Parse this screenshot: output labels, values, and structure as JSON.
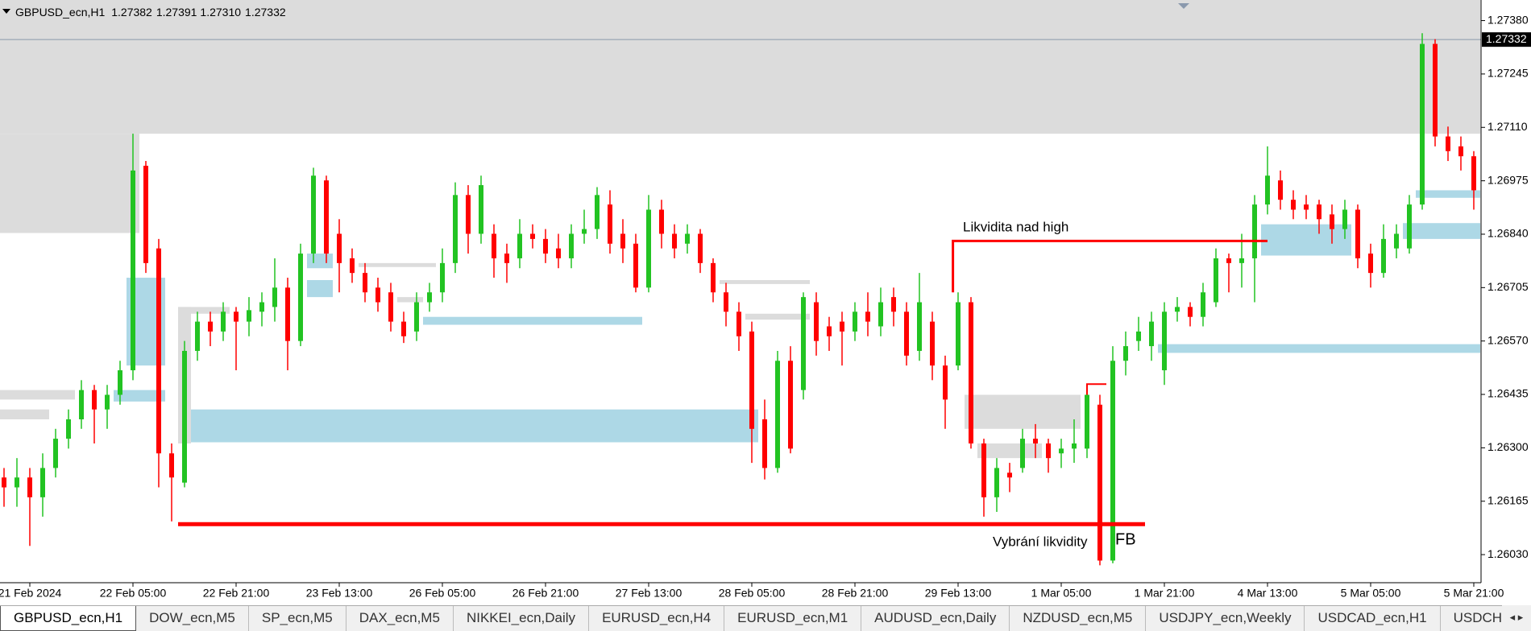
{
  "chart_data": {
    "type": "candlestick",
    "symbol": "GBPUSD_ecn,H1",
    "quote": [
      "1.27382",
      "1.27391",
      "1.27310",
      "1.27332"
    ],
    "up_color": "#22c322",
    "down_color": "#ff0000",
    "ylim": [
      1.25959,
      1.27432
    ],
    "yticks": [
      {
        "value": 1.2738,
        "label": "1.27380"
      },
      1.27245,
      {
        "value": 1.2711,
        "label": "1.27110"
      },
      1.26975,
      {
        "value": 1.2684,
        "label": "1.26840"
      },
      1.26705,
      {
        "value": 1.2657,
        "label": "1.26570"
      },
      1.26435,
      {
        "value": 1.263,
        "label": "1.26300"
      },
      1.26165,
      {
        "value": 1.2603,
        "label": "1.26030"
      }
    ],
    "last_price": 1.27332,
    "categories": [
      null,
      null,
      "21 Feb 2024",
      null,
      null,
      null,
      null,
      null,
      null,
      null,
      "22 Feb 05:00",
      null,
      null,
      null,
      null,
      null,
      null,
      null,
      "22 Feb 21:00",
      null,
      null,
      null,
      null,
      null,
      null,
      null,
      "23 Feb 13:00",
      null,
      null,
      null,
      null,
      null,
      null,
      null,
      "26 Feb 05:00",
      null,
      null,
      null,
      null,
      null,
      null,
      null,
      "26 Feb 21:00",
      null,
      null,
      null,
      null,
      null,
      null,
      null,
      "27 Feb 13:00",
      null,
      null,
      null,
      null,
      null,
      null,
      null,
      "28 Feb 05:00",
      null,
      null,
      null,
      null,
      null,
      null,
      null,
      "28 Feb 21:00",
      null,
      null,
      null,
      null,
      null,
      null,
      null,
      "29 Feb 13:00",
      null,
      null,
      null,
      null,
      null,
      null,
      null,
      "1 Mar 05:00",
      null,
      null,
      null,
      null,
      null,
      null,
      null,
      "1 Mar 21:00",
      null,
      null,
      null,
      null,
      null,
      null,
      null,
      "4 Mar 13:00",
      null,
      null,
      null,
      null,
      null,
      null,
      null,
      "5 Mar 05:00",
      null,
      null,
      null,
      null,
      null,
      null,
      null,
      "5 Mar 21:00"
    ],
    "values": [
      [
        1.26225,
        1.26249,
        1.26151,
        1.262
      ],
      [
        1.262,
        1.26274,
        1.26151,
        1.26225
      ],
      [
        1.26225,
        1.26249,
        1.26052,
        1.26175
      ],
      [
        1.26175,
        1.26286,
        1.26126,
        1.26249
      ],
      [
        1.26249,
        1.26348,
        1.26225,
        1.26323
      ],
      [
        1.26323,
        1.26397,
        1.26298,
        1.26372
      ],
      [
        1.26372,
        1.26471,
        1.26348,
        1.26446
      ],
      [
        1.26446,
        1.26459,
        1.26311,
        1.26397
      ],
      [
        1.26397,
        1.26459,
        1.26348,
        1.26434
      ],
      [
        1.26434,
        1.2652,
        1.26409,
        1.26496
      ],
      [
        1.26496,
        1.27094,
        1.26471,
        1.27001
      ],
      [
        1.27013,
        1.27025,
        1.26742,
        1.26767
      ],
      [
        1.26804,
        1.26828,
        1.262,
        1.26286
      ],
      [
        1.26286,
        1.26311,
        1.26114,
        1.26225
      ],
      [
        1.26212,
        1.2657,
        1.262,
        1.26545
      ],
      [
        1.26545,
        1.26644,
        1.2652,
        1.26619
      ],
      [
        1.26619,
        1.26644,
        1.26557,
        1.26594
      ],
      [
        1.26594,
        1.26668,
        1.2657,
        1.26644
      ],
      [
        1.26644,
        1.26656,
        1.26496,
        1.26619
      ],
      [
        1.26619,
        1.26681,
        1.26582,
        1.26648
      ],
      [
        1.26644,
        1.26693,
        1.26607,
        1.26668
      ],
      [
        1.26656,
        1.26779,
        1.26619,
        1.26705
      ],
      [
        1.26705,
        1.2673,
        1.26496,
        1.2657
      ],
      [
        1.2657,
        1.26816,
        1.26557,
        1.26791
      ],
      [
        1.26791,
        1.27008,
        1.26767,
        1.26988
      ],
      [
        1.26976,
        1.26988,
        1.26767,
        1.26791
      ],
      [
        1.26841,
        1.26878,
        1.26693,
        1.26767
      ],
      [
        1.26779,
        1.26804,
        1.26717,
        1.26742
      ],
      [
        1.26742,
        1.26767,
        1.26668,
        1.26693
      ],
      [
        1.26705,
        1.2673,
        1.26644,
        1.26668
      ],
      [
        1.26693,
        1.26717,
        1.26594,
        1.26619
      ],
      [
        1.26619,
        1.26644,
        1.26565,
        1.26582
      ],
      [
        1.26594,
        1.26693,
        1.2657,
        1.26668
      ],
      [
        1.26668,
        1.26717,
        1.26644,
        1.26693
      ],
      [
        1.26693,
        1.26804,
        1.26668,
        1.26767
      ],
      [
        1.26767,
        1.26971,
        1.26742,
        1.26939
      ],
      [
        1.26939,
        1.26964,
        1.26791,
        1.26841
      ],
      [
        1.26841,
        1.26988,
        1.26816,
        1.26964
      ],
      [
        1.26841,
        1.26865,
        1.2673,
        1.26779
      ],
      [
        1.26791,
        1.26816,
        1.26717,
        1.26767
      ],
      [
        1.26779,
        1.26878,
        1.26754,
        1.26841
      ],
      [
        1.26841,
        1.26865,
        1.26804,
        1.26828
      ],
      [
        1.26828,
        1.26853,
        1.26767,
        1.26791
      ],
      [
        1.26804,
        1.26841,
        1.26754,
        1.26779
      ],
      [
        1.26779,
        1.26865,
        1.26754,
        1.26841
      ],
      [
        1.26841,
        1.26902,
        1.26816,
        1.26853
      ],
      [
        1.26853,
        1.26959,
        1.26828,
        1.26939
      ],
      [
        1.26915,
        1.26951,
        1.26791,
        1.26816
      ],
      [
        1.26841,
        1.26878,
        1.26767,
        1.26804
      ],
      [
        1.26816,
        1.26841,
        1.26693,
        1.26705
      ],
      [
        1.26705,
        1.26939,
        1.26693,
        1.26902
      ],
      [
        1.26902,
        1.26927,
        1.26804,
        1.26841
      ],
      [
        1.26841,
        1.26865,
        1.26779,
        1.26804
      ],
      [
        1.26816,
        1.26865,
        1.26791,
        1.26841
      ],
      [
        1.26841,
        1.26853,
        1.26742,
        1.26767
      ],
      [
        1.26767,
        1.26779,
        1.26668,
        1.26693
      ],
      [
        1.26693,
        1.26717,
        1.26607,
        1.26644
      ],
      [
        1.26644,
        1.26668,
        1.26545,
        1.26582
      ],
      [
        1.26594,
        1.26619,
        1.26262,
        1.26348
      ],
      [
        1.26372,
        1.26422,
        1.2622,
        1.26249
      ],
      [
        1.26249,
        1.26545,
        1.26237,
        1.2652
      ],
      [
        1.2652,
        1.26557,
        1.26286,
        1.26298
      ],
      [
        1.26446,
        1.26693,
        1.26422,
        1.26681
      ],
      [
        1.26668,
        1.26693,
        1.26533,
        1.2657
      ],
      [
        1.26607,
        1.26631,
        1.26545,
        1.26582
      ],
      [
        1.26619,
        1.26644,
        1.26508,
        1.26594
      ],
      [
        1.26594,
        1.26668,
        1.2657,
        1.26644
      ],
      [
        1.26644,
        1.26693,
        1.26582,
        1.26619
      ],
      [
        1.26607,
        1.26705,
        1.26582,
        1.26668
      ],
      [
        1.26681,
        1.26705,
        1.26607,
        1.26644
      ],
      [
        1.26644,
        1.26668,
        1.26508,
        1.26533
      ],
      [
        1.26545,
        1.26742,
        1.2652,
        1.26668
      ],
      [
        1.26619,
        1.26644,
        1.26471,
        1.26508
      ],
      [
        1.26508,
        1.26533,
        1.26348,
        1.26422
      ],
      [
        1.26508,
        1.26693,
        1.26496,
        1.26668
      ],
      [
        1.26668,
        1.26681,
        1.26298,
        1.26311
      ],
      [
        1.26311,
        1.26323,
        1.26126,
        1.26175
      ],
      [
        1.26175,
        1.26274,
        1.26138,
        1.26249
      ],
      [
        1.26237,
        1.26262,
        1.26188,
        1.26225
      ],
      [
        1.26249,
        1.26348,
        1.26237,
        1.26323
      ],
      [
        1.26323,
        1.2636,
        1.26274,
        1.26311
      ],
      [
        1.26311,
        1.26323,
        1.26237,
        1.26274
      ],
      [
        1.26286,
        1.26323,
        1.26249,
        1.26298
      ],
      [
        1.26298,
        1.26372,
        1.26262,
        1.26311
      ],
      [
        1.26298,
        1.26459,
        1.26274,
        1.26434
      ],
      [
        1.26409,
        1.26434,
        1.26003,
        1.26015
      ],
      [
        1.26015,
        1.26557,
        1.26008,
        1.2652
      ],
      [
        1.2652,
        1.26594,
        1.26483,
        1.26557
      ],
      [
        1.2657,
        1.26631,
        1.26545,
        1.26594
      ],
      [
        1.26557,
        1.26644,
        1.2652,
        1.26619
      ],
      [
        1.26496,
        1.26668,
        1.26459,
        1.26644
      ],
      [
        1.26644,
        1.26681,
        1.26619,
        1.26656
      ],
      [
        1.26656,
        1.26668,
        1.26607,
        1.26631
      ],
      [
        1.26631,
        1.26717,
        1.26607,
        1.26693
      ],
      [
        1.26668,
        1.26804,
        1.26656,
        1.26779
      ],
      [
        1.26779,
        1.26791,
        1.26693,
        1.26767
      ],
      [
        1.26767,
        1.26841,
        1.26705,
        1.26779
      ],
      [
        1.26779,
        1.26939,
        1.26668,
        1.26915
      ],
      [
        1.26915,
        1.27062,
        1.2689,
        1.26988
      ],
      [
        1.26976,
        1.27001,
        1.26902,
        1.26927
      ],
      [
        1.26927,
        1.26951,
        1.26878,
        1.26902
      ],
      [
        1.26915,
        1.26939,
        1.26878,
        1.26902
      ],
      [
        1.26915,
        1.26927,
        1.26841,
        1.26878
      ],
      [
        1.2689,
        1.26915,
        1.26816,
        1.26853
      ],
      [
        1.26853,
        1.26927,
        1.26828,
        1.26902
      ],
      [
        1.26902,
        1.26915,
        1.26754,
        1.26779
      ],
      [
        1.26791,
        1.26816,
        1.26705,
        1.26742
      ],
      [
        1.26742,
        1.26865,
        1.2673,
        1.26828
      ],
      [
        1.26804,
        1.26865,
        1.26779,
        1.26841
      ],
      [
        1.26804,
        1.26939,
        1.26791,
        1.26915
      ],
      [
        1.26915,
        1.27348,
        1.26902,
        1.27321
      ],
      [
        1.27321,
        1.27333,
        1.27062,
        1.27087
      ],
      [
        1.27087,
        1.27112,
        1.27025,
        1.2705
      ],
      [
        1.27062,
        1.27087,
        1.27001,
        1.27037
      ],
      [
        1.27037,
        1.2705,
        1.26902,
        1.26951
      ]
    ],
    "zones": [
      {
        "from": 0,
        "to": 114,
        "top": 1.27432,
        "bottom": 1.27094,
        "color": "#dcdcdc"
      },
      {
        "from": 0,
        "to": 10,
        "top": 1.27094,
        "bottom": 1.26843,
        "color": "#dcdcdc"
      },
      {
        "from": 0,
        "to": 5,
        "top": 1.26446,
        "bottom": 1.26422,
        "color": "#dcdcdc"
      },
      {
        "from": 0,
        "to": 3,
        "top": 1.26397,
        "bottom": 1.26372,
        "color": "#dcdcdc"
      },
      {
        "from": 9,
        "to": 12,
        "top": 1.26446,
        "bottom": 1.26417,
        "color": "#add8e6"
      },
      {
        "from": 10,
        "to": 12,
        "top": 1.2673,
        "bottom": 1.26508,
        "color": "#add8e6"
      },
      {
        "from": 14,
        "to": 14,
        "top": 1.26656,
        "bottom": 1.26311,
        "color": "#dcdcdc"
      },
      {
        "from": 14,
        "to": 17,
        "top": 1.26656,
        "bottom": 1.26639,
        "color": "#dcdcdc"
      },
      {
        "from": 15,
        "to": 58,
        "top": 1.26397,
        "bottom": 1.26314,
        "color": "#add8e6"
      },
      {
        "from": 24,
        "to": 25,
        "top": 1.26791,
        "bottom": 1.26754,
        "color": "#add8e6"
      },
      {
        "from": 24,
        "to": 25,
        "top": 1.26724,
        "bottom": 1.26681,
        "color": "#add8e6"
      },
      {
        "from": 28,
        "to": 33,
        "top": 1.26767,
        "bottom": 1.26757,
        "color": "#dcdcdc"
      },
      {
        "from": 31,
        "to": 32,
        "top": 1.26681,
        "bottom": 1.26668,
        "color": "#dcdcdc"
      },
      {
        "from": 33,
        "to": 49,
        "top": 1.26631,
        "bottom": 1.26611,
        "color": "#add8e6"
      },
      {
        "from": 56,
        "to": 62,
        "top": 1.26724,
        "bottom": 1.26714,
        "color": "#dcdcdc"
      },
      {
        "from": 58,
        "to": 62,
        "top": 1.26639,
        "bottom": 1.26624,
        "color": "#dcdcdc"
      },
      {
        "from": 75,
        "to": 83,
        "top": 1.26434,
        "bottom": 1.26348,
        "color": "#dcdcdc"
      },
      {
        "from": 76,
        "to": 80,
        "top": 1.26311,
        "bottom": 1.26274,
        "color": "#dcdcdc"
      },
      {
        "from": 90,
        "to": 114,
        "top": 1.26562,
        "bottom": 1.2654,
        "color": "#add8e6"
      },
      {
        "from": 98,
        "to": 104,
        "top": 1.26865,
        "bottom": 1.26786,
        "color": "#add8e6"
      },
      {
        "from": 109,
        "to": 114,
        "top": 1.26868,
        "bottom": 1.26828,
        "color": "#add8e6"
      },
      {
        "from": 110,
        "to": 114,
        "top": 1.26951,
        "bottom": 1.26932,
        "color": "#add8e6"
      }
    ],
    "lines": [
      {
        "x": [
          13.5,
          88.5
        ],
        "y": [
          1.26107,
          1.26107
        ],
        "color": "#ff0000",
        "width": 5
      },
      {
        "x": [
          73.6,
          73.6,
          98
        ],
        "y": [
          1.26693,
          1.26823,
          1.26823
        ],
        "color": "#ff0000",
        "width": 3
      },
      {
        "x": [
          84,
          84,
          85.5
        ],
        "y": [
          1.26434,
          1.26461,
          1.26461
        ],
        "color": "#ff0000",
        "width": 2
      }
    ],
    "annotations": [
      "Likvidita nad high",
      "Vybrání likvidity",
      "FB"
    ]
  },
  "tabs": [
    "GBPUSD_ecn,H1",
    "DOW_ecn,M5",
    "SP_ecn,M5",
    "DAX_ecn,M5",
    "NIKKEI_ecn,Daily",
    "EURUSD_ecn,H4",
    "EURUSD_ecn,M1",
    "AUDUSD_ecn,Daily",
    "NZDUSD_ecn,M5",
    "USDJPY_ecn,Weekly",
    "USDCAD_ecn,H1",
    "USDCHF,Daily"
  ]
}
